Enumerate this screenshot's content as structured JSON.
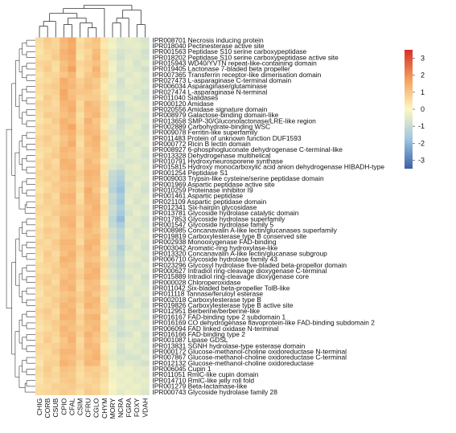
{
  "chart_data": {
    "type": "heatmap",
    "title": "",
    "columns": [
      "CHIG",
      "CORB",
      "CSUB",
      "CPIO",
      "CFAL",
      "CSIM",
      "CFRU",
      "CGLO",
      "CHYM",
      "MORY",
      "NCRA",
      "FGRA",
      "FOXY",
      "VDAH"
    ],
    "rows": [
      {
        "label": "IPR008701 Necrosis inducing protein"
      },
      {
        "label": "IPR018040 Pectinesterase  active site"
      },
      {
        "label": "IPR001563 Peptidase S10  serine carboxypeptidase"
      },
      {
        "label": "IPR018202 Peptidase S10  serine carboxypeptidase  active site"
      },
      {
        "label": "IPR015943 WD40/YVTN repeat-like-containing domain"
      },
      {
        "label": "IPR019405 Lactonase  7-bladed beta propeller"
      },
      {
        "label": "IPR007365 Transferrin receptor-like  dimerisation domain"
      },
      {
        "label": "IPR027473 L-asparaginase  C-terminal domain"
      },
      {
        "label": "IPR006034 Asparaginase/glutaminase"
      },
      {
        "label": "IPR027474 L-asparaginase  N-terminal"
      },
      {
        "label": "IPR011040 Sialidases"
      },
      {
        "label": "IPR000120 Amidase"
      },
      {
        "label": "IPR020556 Amidase signature domain"
      },
      {
        "label": "IPR008979 Galactose-binding domain-like"
      },
      {
        "label": "IPR013658 SMP-30/Gluconolactonase/LRE-like region"
      },
      {
        "label": "IPR002889 Carbohydrate-binding WSC"
      },
      {
        "label": "IPR009078 Ferritin-like superfamily"
      },
      {
        "label": "IPR011483 Protein of unknown function DUF1593"
      },
      {
        "label": "IPR000772 Ricin B lectin domain"
      },
      {
        "label": "IPR008927 6-phosphogluconate dehydrogenase  C-terminal-like"
      },
      {
        "label": "IPR013328 Dehydrogenase  multihelical"
      },
      {
        "label": "IPR010791 Hydroxyneurosporene synthase"
      },
      {
        "label": "IPR015815 Hydroxy monocarboxylic acid anion dehydrogenase  HIBADH-type"
      },
      {
        "label": "IPR001254 Peptidase S1"
      },
      {
        "label": "IPR009003 Trypsin-like cysteine/serine peptidase domain"
      },
      {
        "label": "IPR001969 Aspartic peptidase  active site"
      },
      {
        "label": "IPR010259 Proteinase inhibitor I9"
      },
      {
        "label": "IPR001461 Aspartic peptidase"
      },
      {
        "label": "IPR021109 Aspartic peptidase domain"
      },
      {
        "label": "IPR012341 Six-hairpin glycosidase"
      },
      {
        "label": "IPR013781 Glycoside hydrolase  catalytic domain"
      },
      {
        "label": "IPR017853 Glycoside hydrolase  superfamily"
      },
      {
        "label": "IPR001547 Glycoside hydrolase  family 5"
      },
      {
        "label": "IPR008985 Concanavalin A-like lectin/glucanases superfamily"
      },
      {
        "label": "IPR019819 Carboxylesterase type B  conserved site"
      },
      {
        "label": "IPR002938 Monooxygenase  FAD-binding"
      },
      {
        "label": "IPR003042 Aromatic-ring hydroxylase-like"
      },
      {
        "label": "IPR013320 Concanavalin A-like lectin/glucanase  subgroup"
      },
      {
        "label": "IPR006710 Glycoside hydrolase  family 43"
      },
      {
        "label": "IPR023296 Glycosyl hydrolase  five-bladed beta-propellor domain"
      },
      {
        "label": "IPR000627 Intradiol ring-cleavage dioxygenase  C-terminal"
      },
      {
        "label": "IPR015889 Intradiol ring-cleavage dioxygenase  core"
      },
      {
        "label": "IPR000028 Chloroperoxidase"
      },
      {
        "label": "IPR011042 Six-bladed beta-propeller  TolB-like"
      },
      {
        "label": "IPR011118 Tannase/feruloyl esterase"
      },
      {
        "label": "IPR002018 Carboxylesterase  type B"
      },
      {
        "label": "IPR019826 Carboxylesterase type B  active site"
      },
      {
        "label": "IPR012951 Berberine/berberine-like"
      },
      {
        "label": "IPR016167 FAD-binding  type 2  subdomain 1"
      },
      {
        "label": "IPR016169 CO dehydrogenase flavoprotein-like  FAD-binding  subdomain 2"
      },
      {
        "label": "IPR006094 FAD linked oxidase  N-terminal"
      },
      {
        "label": "IPR016166 FAD-binding  type 2"
      },
      {
        "label": "IPR001087 Lipase  GDSL"
      },
      {
        "label": "IPR013831 SGNH hydrolase-type esterase domain"
      },
      {
        "label": "IPR000172 Glucose-methanol-choline oxidoreductase  N-terminal"
      },
      {
        "label": "IPR007867 Glucose-methanol-choline oxidoreductase  C-terminal"
      },
      {
        "label": "IPR012132 Glucose-methanol-choline oxidoreductase"
      },
      {
        "label": "IPR006045 Cupin 1"
      },
      {
        "label": "IPR011051 RmlC-like cupin domain"
      },
      {
        "label": "IPR014710 RmlC-like jelly roll fold"
      },
      {
        "label": "IPR001279 Beta-lactamase-like"
      },
      {
        "label": "IPR000743 Glycoside hydrolase  family 28"
      }
    ],
    "values": [
      [
        0.6,
        0.9,
        0.7,
        1.3,
        1.6,
        0.5,
        0.8,
        1.1,
        0.4,
        -0.3,
        -0.6,
        -0.4,
        -0.5,
        -0.7
      ],
      [
        0.5,
        0.8,
        0.7,
        1.2,
        1.5,
        0.6,
        0.9,
        1.0,
        0.3,
        -0.2,
        -0.5,
        -0.5,
        -0.4,
        -0.6
      ],
      [
        0.4,
        0.7,
        0.8,
        1.4,
        1.6,
        0.5,
        0.7,
        1.2,
        0.5,
        -0.4,
        -0.7,
        -0.6,
        -0.5,
        -0.8
      ],
      [
        0.5,
        0.6,
        0.9,
        1.3,
        1.5,
        0.4,
        0.8,
        1.3,
        0.4,
        -0.5,
        -0.8,
        -0.5,
        -0.6,
        -0.7
      ],
      [
        0.7,
        0.8,
        0.6,
        1.1,
        1.4,
        0.7,
        0.9,
        1.1,
        0.6,
        -0.3,
        -0.6,
        -0.4,
        -0.7,
        -0.5
      ],
      [
        0.6,
        0.9,
        0.5,
        1.2,
        1.7,
        0.6,
        0.8,
        1.4,
        0.5,
        -0.2,
        -0.7,
        -0.5,
        -0.6,
        -0.8
      ],
      [
        0.4,
        0.7,
        0.7,
        1.0,
        1.3,
        0.5,
        1.0,
        1.2,
        0.7,
        -0.4,
        -0.5,
        -0.6,
        -0.4,
        -0.6
      ],
      [
        0.5,
        0.6,
        0.8,
        1.5,
        1.2,
        0.8,
        1.1,
        0.9,
        0.4,
        -0.3,
        -0.8,
        -0.4,
        -0.5,
        -0.7
      ],
      [
        0.6,
        0.8,
        0.9,
        1.4,
        1.3,
        0.9,
        1.2,
        1.0,
        0.3,
        -0.5,
        -0.7,
        -0.5,
        -0.6,
        -0.6
      ],
      [
        0.5,
        0.7,
        0.8,
        1.6,
        1.1,
        1.0,
        1.0,
        0.8,
        0.4,
        -0.4,
        -0.6,
        -0.6,
        -0.5,
        -0.8
      ],
      [
        0.4,
        0.9,
        0.7,
        1.5,
        1.2,
        0.8,
        0.9,
        0.9,
        0.5,
        -0.2,
        -0.5,
        -0.4,
        -0.7,
        -0.7
      ],
      [
        0.7,
        0.8,
        0.6,
        1.3,
        1.4,
        0.6,
        1.3,
        1.1,
        0.6,
        -0.6,
        -0.9,
        -0.5,
        -0.4,
        -0.6
      ],
      [
        0.6,
        0.7,
        0.7,
        1.2,
        1.5,
        0.7,
        1.2,
        1.2,
        0.5,
        -0.5,
        -0.8,
        -0.6,
        -0.5,
        -0.5
      ],
      [
        0.5,
        0.9,
        0.8,
        1.1,
        1.3,
        0.5,
        1.1,
        1.3,
        0.6,
        -0.4,
        -0.7,
        -0.5,
        -0.6,
        -0.7
      ],
      [
        0.4,
        0.6,
        0.9,
        1.4,
        1.2,
        0.6,
        1.4,
        1.0,
        0.4,
        -0.3,
        -0.9,
        -0.7,
        -0.5,
        -0.6
      ],
      [
        0.6,
        0.8,
        0.7,
        1.3,
        1.6,
        0.7,
        1.2,
        1.1,
        0.3,
        -0.5,
        -0.8,
        -0.5,
        -0.4,
        -0.8
      ],
      [
        0.5,
        0.7,
        0.8,
        1.2,
        1.4,
        0.8,
        1.3,
        1.2,
        0.5,
        -0.6,
        -0.7,
        -0.4,
        -0.6,
        -0.7
      ],
      [
        0.7,
        0.9,
        0.6,
        1.0,
        1.3,
        0.6,
        1.1,
        1.4,
        0.6,
        -0.4,
        -0.6,
        -0.6,
        -0.5,
        -0.6
      ],
      [
        0.6,
        0.8,
        0.7,
        1.1,
        1.5,
        0.5,
        1.2,
        1.3,
        0.4,
        -0.5,
        -0.9,
        -0.5,
        -0.7,
        -0.5
      ],
      [
        0.5,
        0.6,
        0.8,
        1.3,
        1.2,
        0.7,
        1.0,
        1.2,
        0.5,
        -0.3,
        -0.8,
        -0.6,
        -0.4,
        -0.7
      ],
      [
        0.4,
        0.7,
        0.9,
        1.2,
        1.1,
        0.8,
        1.1,
        1.1,
        0.6,
        -0.4,
        -0.7,
        -0.5,
        -0.5,
        -0.8
      ],
      [
        0.6,
        0.8,
        0.6,
        1.4,
        1.3,
        0.6,
        1.3,
        1.0,
        0.3,
        -0.5,
        -0.6,
        -0.7,
        -0.6,
        -0.6
      ],
      [
        0.5,
        0.9,
        0.7,
        1.3,
        1.4,
        0.7,
        1.2,
        1.2,
        0.5,
        -0.6,
        -0.8,
        -0.5,
        -0.4,
        -0.7
      ],
      [
        0.7,
        0.7,
        0.8,
        1.1,
        1.2,
        0.9,
        1.4,
        1.3,
        0.4,
        -1.0,
        -1.3,
        -0.6,
        -0.5,
        -0.6
      ],
      [
        0.6,
        0.8,
        0.7,
        1.2,
        1.3,
        0.8,
        1.3,
        1.2,
        0.5,
        -1.1,
        -1.4,
        -0.5,
        -0.6,
        -0.5
      ],
      [
        0.5,
        0.6,
        0.9,
        1.0,
        1.1,
        0.6,
        1.2,
        1.1,
        0.6,
        -1.2,
        -1.6,
        -0.7,
        -0.4,
        -0.7
      ],
      [
        0.4,
        0.7,
        0.8,
        1.1,
        1.2,
        0.7,
        1.5,
        1.0,
        0.3,
        -1.3,
        -1.8,
        -0.6,
        -0.5,
        -0.8
      ],
      [
        0.6,
        0.9,
        0.6,
        1.3,
        1.4,
        0.5,
        1.4,
        1.2,
        0.5,
        -1.0,
        -1.5,
        -0.5,
        -0.6,
        -0.6
      ],
      [
        0.5,
        0.8,
        0.7,
        1.2,
        1.3,
        0.6,
        1.3,
        1.3,
        0.4,
        -1.1,
        -1.7,
        -0.4,
        -0.7,
        -0.5
      ],
      [
        0.7,
        0.7,
        0.8,
        1.0,
        1.1,
        0.8,
        1.1,
        1.4,
        0.6,
        -0.9,
        -1.4,
        -0.6,
        -0.5,
        -0.7
      ],
      [
        0.6,
        0.6,
        0.9,
        1.1,
        1.2,
        0.9,
        1.2,
        1.3,
        0.5,
        -1.0,
        -1.6,
        -0.7,
        -0.4,
        -0.6
      ],
      [
        0.5,
        0.8,
        0.7,
        1.3,
        1.3,
        0.7,
        1.3,
        1.2,
        0.4,
        -1.2,
        -1.9,
        -0.5,
        -0.6,
        -0.8
      ],
      [
        0.4,
        0.7,
        0.6,
        1.2,
        1.4,
        0.6,
        1.4,
        1.1,
        0.3,
        -1.1,
        -1.5,
        -0.6,
        -0.5,
        -0.7
      ],
      [
        0.6,
        0.9,
        0.8,
        1.0,
        1.2,
        0.8,
        1.2,
        1.0,
        0.5,
        -0.8,
        -1.2,
        -0.4,
        -0.7,
        -0.6
      ],
      [
        0.5,
        0.8,
        0.7,
        1.1,
        1.1,
        0.7,
        1.1,
        1.2,
        0.6,
        -0.9,
        -1.3,
        -0.5,
        -0.6,
        -0.5
      ],
      [
        0.7,
        0.6,
        0.9,
        1.3,
        1.3,
        0.6,
        1.3,
        1.3,
        0.4,
        -0.7,
        -1.1,
        -0.6,
        -0.5,
        -0.7
      ],
      [
        0.6,
        0.7,
        0.8,
        1.2,
        1.2,
        0.9,
        1.4,
        1.1,
        0.5,
        -0.8,
        -1.4,
        -0.7,
        -0.4,
        -0.8
      ],
      [
        0.5,
        0.9,
        0.6,
        1.1,
        1.4,
        0.8,
        1.2,
        1.2,
        0.3,
        -0.9,
        -1.2,
        -0.5,
        -0.6,
        -0.6
      ],
      [
        0.4,
        0.8,
        0.7,
        1.4,
        1.3,
        0.7,
        1.1,
        1.0,
        0.5,
        -0.7,
        -1.0,
        -0.4,
        -0.5,
        -0.7
      ],
      [
        0.6,
        0.7,
        0.8,
        1.2,
        1.1,
        0.6,
        1.3,
        1.2,
        0.6,
        -0.8,
        -1.1,
        -0.6,
        -0.7,
        -0.5
      ],
      [
        0.5,
        0.6,
        0.9,
        1.0,
        1.2,
        0.8,
        1.2,
        1.4,
        0.4,
        -0.6,
        -0.9,
        -0.5,
        -0.6,
        -0.6
      ],
      [
        0.7,
        0.8,
        0.7,
        1.1,
        1.3,
        0.9,
        1.4,
        1.3,
        0.5,
        -0.7,
        -1.0,
        -0.7,
        -0.4,
        -0.8
      ],
      [
        0.6,
        0.9,
        0.6,
        1.3,
        1.2,
        0.7,
        1.2,
        1.1,
        0.3,
        -0.5,
        -0.8,
        -0.6,
        -0.5,
        -0.7
      ],
      [
        0.5,
        0.7,
        0.8,
        1.2,
        1.4,
        0.6,
        1.1,
        1.2,
        0.6,
        -0.6,
        -0.9,
        -0.4,
        -0.6,
        -0.6
      ],
      [
        0.4,
        0.8,
        0.7,
        1.0,
        1.1,
        0.8,
        1.3,
        1.0,
        0.5,
        -0.5,
        -0.7,
        -0.5,
        -0.7,
        -0.5
      ],
      [
        0.6,
        0.6,
        0.9,
        1.1,
        1.3,
        0.9,
        1.2,
        1.3,
        0.4,
        -0.7,
        -1.0,
        -0.6,
        -0.5,
        -0.7
      ],
      [
        0.5,
        0.7,
        0.8,
        1.3,
        1.2,
        0.7,
        1.4,
        1.2,
        0.5,
        -0.6,
        -0.9,
        -0.7,
        -0.4,
        -0.8
      ],
      [
        0.7,
        0.9,
        0.6,
        1.2,
        1.4,
        0.6,
        1.1,
        1.1,
        0.6,
        -0.4,
        -0.6,
        -0.5,
        -0.6,
        -0.6
      ],
      [
        0.6,
        0.8,
        0.7,
        1.4,
        1.3,
        0.8,
        1.3,
        1.4,
        0.3,
        -0.5,
        -0.7,
        -0.4,
        -0.5,
        -0.7
      ],
      [
        0.5,
        0.7,
        0.9,
        1.1,
        1.2,
        0.7,
        1.2,
        1.2,
        0.5,
        -0.4,
        -0.8,
        -0.6,
        -0.7,
        -0.5
      ],
      [
        0.4,
        0.6,
        0.8,
        1.3,
        1.1,
        0.9,
        1.1,
        1.3,
        0.4,
        -0.6,
        -0.7,
        -0.5,
        -0.6,
        -0.6
      ],
      [
        0.6,
        0.8,
        0.7,
        1.2,
        1.3,
        0.8,
        1.4,
        1.1,
        0.6,
        -0.5,
        -0.9,
        -0.7,
        -0.4,
        -0.8
      ],
      [
        0.5,
        0.9,
        0.6,
        1.0,
        1.4,
        0.6,
        1.2,
        1.0,
        0.5,
        -0.4,
        -0.6,
        -0.5,
        -0.5,
        -0.7
      ],
      [
        0.7,
        0.7,
        0.8,
        1.1,
        1.2,
        0.7,
        1.3,
        1.2,
        0.3,
        -0.3,
        -0.7,
        -0.4,
        -0.6,
        -0.6
      ],
      [
        0.6,
        0.6,
        0.9,
        1.3,
        1.3,
        0.8,
        1.1,
        1.3,
        0.4,
        -0.4,
        -0.8,
        -0.6,
        -0.5,
        -0.7
      ],
      [
        0.5,
        0.7,
        0.7,
        1.2,
        1.1,
        0.9,
        1.2,
        1.4,
        0.6,
        -0.5,
        -0.6,
        -0.7,
        -0.7,
        -0.5
      ],
      [
        0.4,
        0.8,
        0.8,
        1.4,
        1.2,
        0.7,
        1.3,
        1.2,
        0.5,
        -0.3,
        -0.7,
        -0.5,
        -0.6,
        -0.8
      ],
      [
        0.6,
        0.9,
        0.6,
        1.1,
        1.0,
        0.6,
        0.9,
        0.8,
        0.7,
        -0.2,
        -0.4,
        -0.3,
        -0.5,
        -0.5
      ],
      [
        0.5,
        0.8,
        0.7,
        1.0,
        0.9,
        0.5,
        0.8,
        0.9,
        0.6,
        -0.3,
        -0.3,
        -0.4,
        -0.4,
        -0.6
      ],
      [
        0.4,
        0.7,
        0.6,
        0.9,
        1.0,
        0.6,
        0.7,
        0.8,
        0.5,
        -0.2,
        -0.4,
        -0.3,
        -0.5,
        -0.4
      ],
      [
        0.5,
        0.6,
        0.8,
        0.8,
        0.9,
        0.7,
        0.8,
        0.7,
        0.4,
        -0.1,
        -0.3,
        -0.4,
        -0.3,
        -0.5
      ],
      [
        0.6,
        0.7,
        0.7,
        0.9,
        0.8,
        0.5,
        0.9,
        0.8,
        0.5,
        -0.2,
        -0.5,
        -0.3,
        -0.4,
        -0.6
      ]
    ],
    "colorbar": {
      "ticks": [
        "3",
        "2",
        "1",
        "0",
        "-1",
        "-2",
        "-3"
      ],
      "min": -3.5,
      "max": 3.5,
      "colors": {
        "low": "#3a62a8",
        "mid": "#fdf8c0",
        "high": "#d73027"
      }
    },
    "dendrograms": {
      "column": "shown-top",
      "row": "shown-left"
    }
  }
}
